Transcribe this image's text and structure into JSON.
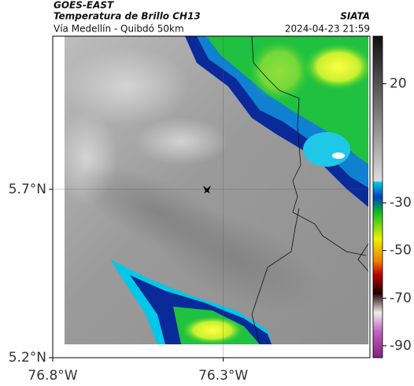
{
  "header": {
    "title": "GOES-EAST",
    "subtitle": "Temperatura de Brillo CH13",
    "source": "SIATA",
    "region": "Vía Medellín - Quibdó 50km",
    "timestamp": "2024-04-23 21:59"
  },
  "map": {
    "xlim": [
      -76.8,
      -75.87
    ],
    "ylim": [
      5.2,
      6.155
    ],
    "xticks": [
      {
        "value": -76.8,
        "label": "76.8°W"
      },
      {
        "value": -76.3,
        "label": "76.3°W"
      }
    ],
    "yticks": [
      {
        "value": 5.7,
        "label": "5.7°N"
      },
      {
        "value": 5.2,
        "label": "5.2°N"
      }
    ],
    "grid": true
  },
  "colorbar": {
    "clim": [
      -95,
      40
    ],
    "ticks": [
      20,
      -30,
      -50,
      -70,
      -90
    ]
  }
}
